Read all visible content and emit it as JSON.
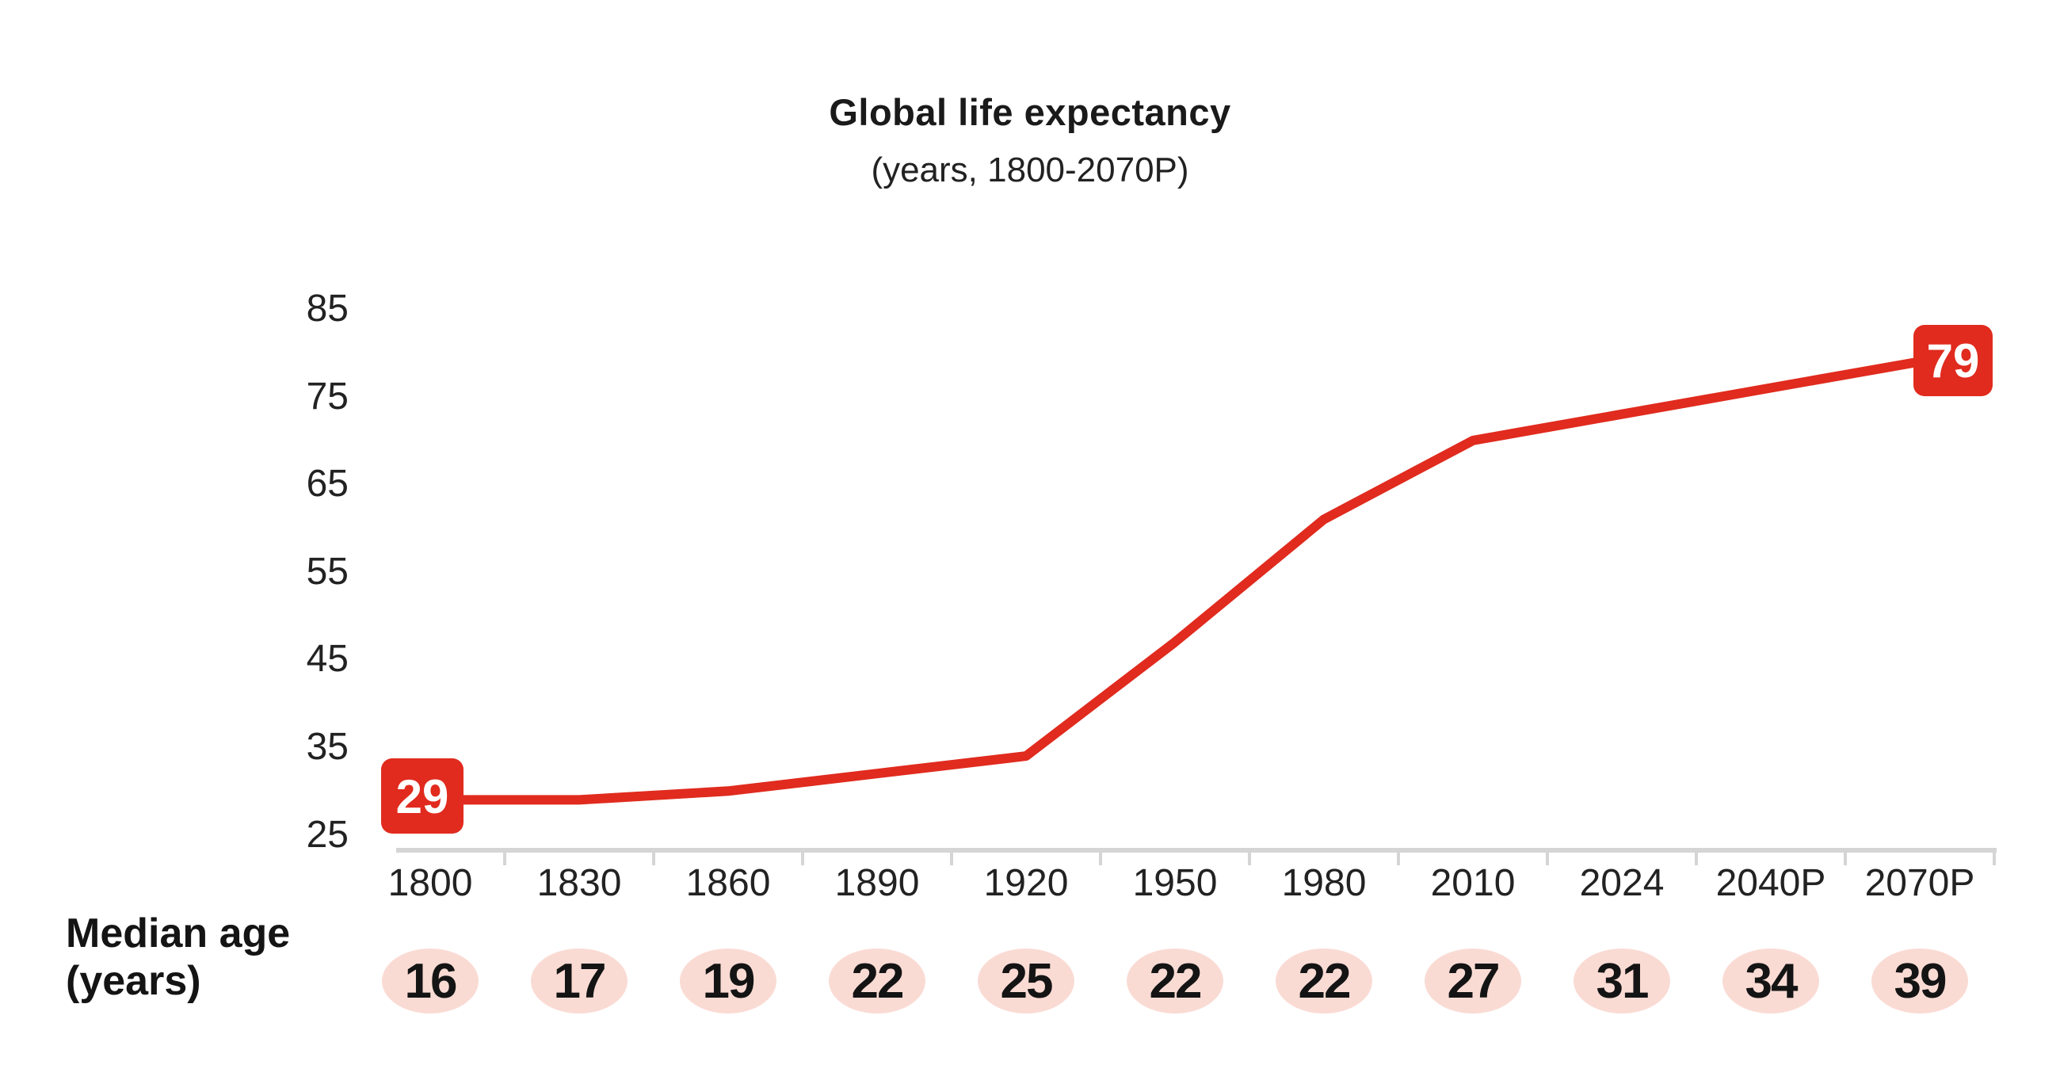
{
  "title": "Global life expectancy",
  "subtitle": "(years, 1800-2070P)",
  "row_label": {
    "line1": "Median age",
    "line2": "(years)"
  },
  "colors": {
    "line_red": "#e02b1e",
    "badge_pink": "#fadbd4",
    "axis_gray": "#d5d5d5",
    "text": "#1a1a1a"
  },
  "chart_data": {
    "type": "line",
    "title": "Global life expectancy",
    "subtitle": "(years, 1800-2070P)",
    "x": [
      "1800",
      "1830",
      "1860",
      "1890",
      "1920",
      "1950",
      "1980",
      "2010",
      "2024",
      "2040P",
      "2070P"
    ],
    "series": [
      {
        "name": "Global life expectancy (years)",
        "values": [
          29,
          29,
          30,
          32,
          34,
          47,
          61,
          70,
          73,
          76,
          79
        ]
      },
      {
        "name": "Median age (years)",
        "values": [
          16,
          17,
          19,
          22,
          25,
          22,
          22,
          27,
          31,
          34,
          39
        ]
      }
    ],
    "y_ticks": [
      85,
      75,
      65,
      55,
      45,
      35,
      25
    ],
    "ylim": [
      22,
      90
    ],
    "grid": false,
    "legend": "none",
    "endpoint_labels": {
      "first": "29",
      "last": "79"
    },
    "line_color": "#e02b1e"
  }
}
